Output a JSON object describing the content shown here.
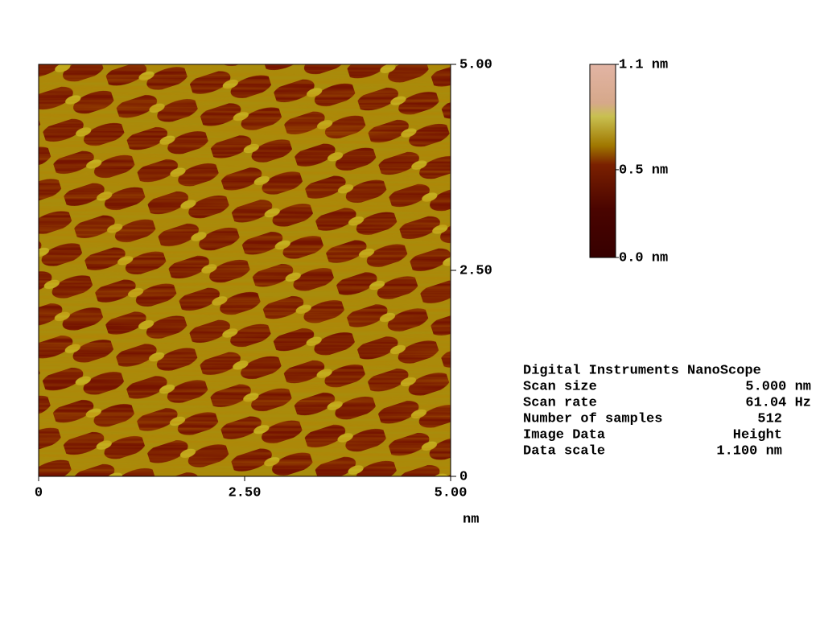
{
  "image": {
    "x_ticks": [
      {
        "value": 0,
        "label": "0"
      },
      {
        "value": 2.5,
        "label": "2.50"
      },
      {
        "value": 5,
        "label": "5.00"
      }
    ],
    "y_ticks": [
      {
        "value": 0,
        "label": "0"
      },
      {
        "value": 2.5,
        "label": "2.50"
      },
      {
        "value": 5,
        "label": "5.00"
      }
    ],
    "unit": "nm"
  },
  "colorbar": {
    "ticks": [
      {
        "value": 1.1,
        "label": "1.1 nm"
      },
      {
        "value": 0.5,
        "label": "0.5 nm"
      },
      {
        "value": 0,
        "label": "0.0 nm"
      }
    ]
  },
  "info": {
    "title": "Digital Instruments NanoScope",
    "rows": [
      [
        "Scan size",
        "5.000 nm"
      ],
      [
        "Scan rate",
        "61.04 Hz"
      ],
      [
        "Number of samples",
        "512"
      ],
      [
        "Image Data",
        "Height"
      ],
      [
        "Data scale",
        "1.100 nm"
      ]
    ]
  }
}
